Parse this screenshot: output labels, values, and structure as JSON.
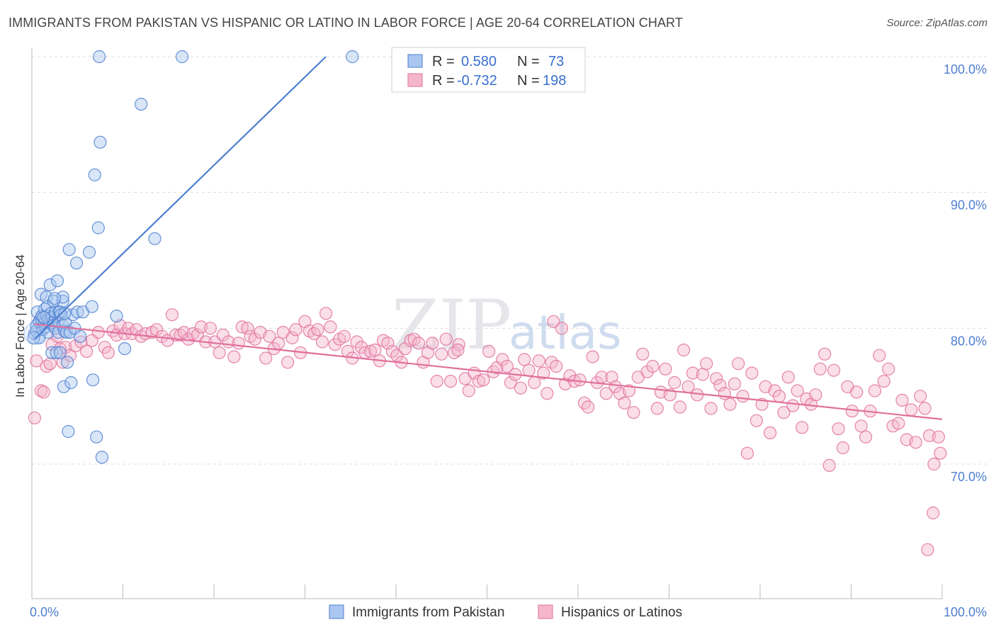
{
  "title": "IMMIGRANTS FROM PAKISTAN VS HISPANIC OR LATINO IN LABOR FORCE | AGE 20-64 CORRELATION CHART",
  "source": "Source: ZipAtlas.com",
  "watermark": {
    "part1": "ZIP",
    "part2": "atlas"
  },
  "colors": {
    "blue": "#4f7fd0",
    "blue_fill": "#a9c7f0",
    "pink": "#e0709a",
    "pink_fill": "#f5b6cc",
    "grid": "#dddddd"
  },
  "legend": {
    "rows": [
      {
        "r_label": "R =",
        "r_value": "0.580",
        "n_label": "N =",
        "n_value": "73"
      },
      {
        "r_label": "R =",
        "r_value": "-0.732",
        "n_label": "N =",
        "n_value": "198"
      }
    ]
  },
  "chart_data": {
    "type": "scatter",
    "ylabel": "In Labor Force | Age 20-64",
    "xlim": [
      0,
      100
    ],
    "ylim": [
      62.0,
      101.0
    ],
    "y_ticks": [
      70,
      80,
      90,
      100
    ],
    "y_tick_labels": [
      "70.0%",
      "80.0%",
      "90.0%",
      "100.0%"
    ],
    "x_tick_labels": [
      "0.0%",
      "100.0%"
    ],
    "grid": true,
    "legend_position": "bottom",
    "series": [
      {
        "name": "Immigrants from Pakistan",
        "color": "#4f7fd0",
        "trend": {
          "x": [
            0.3,
            32.3
          ],
          "y": [
            79.2,
            100.0
          ]
        },
        "points": [
          [
            0.3,
            79.6
          ],
          [
            0.5,
            80.2
          ],
          [
            0.5,
            79.8
          ],
          [
            0.8,
            80.5
          ],
          [
            0.8,
            79.3
          ],
          [
            0.6,
            81.2
          ],
          [
            1.0,
            82.5
          ],
          [
            1.0,
            80.7
          ],
          [
            1.1,
            80.9
          ],
          [
            1.2,
            79.9
          ],
          [
            1.4,
            80.4
          ],
          [
            1.4,
            81.4
          ],
          [
            1.5,
            80.1
          ],
          [
            1.6,
            80.9
          ],
          [
            1.6,
            82.3
          ],
          [
            1.7,
            81.6
          ],
          [
            1.8,
            80.6
          ],
          [
            1.8,
            79.7
          ],
          [
            2.0,
            83.2
          ],
          [
            2.0,
            80.4
          ],
          [
            2.1,
            81.1
          ],
          [
            2.2,
            80.8
          ],
          [
            2.2,
            78.2
          ],
          [
            2.3,
            80.4
          ],
          [
            2.4,
            80.2
          ],
          [
            2.4,
            82.0
          ],
          [
            2.6,
            81.2
          ],
          [
            2.6,
            80.0
          ],
          [
            2.7,
            78.2
          ],
          [
            2.8,
            83.5
          ],
          [
            2.9,
            80.5
          ],
          [
            2.9,
            79.7
          ],
          [
            3.0,
            81.2
          ],
          [
            3.1,
            81.2
          ],
          [
            3.1,
            78.2
          ],
          [
            3.2,
            81.0
          ],
          [
            3.4,
            82.0
          ],
          [
            3.4,
            82.3
          ],
          [
            3.4,
            80.2
          ],
          [
            3.5,
            75.7
          ],
          [
            3.6,
            79.8
          ],
          [
            3.7,
            80.4
          ],
          [
            3.8,
            79.7
          ],
          [
            3.9,
            77.5
          ],
          [
            4.0,
            72.4
          ],
          [
            4.1,
            85.8
          ],
          [
            4.2,
            79.7
          ],
          [
            4.3,
            76.0
          ],
          [
            4.5,
            81.0
          ],
          [
            4.7,
            80.0
          ],
          [
            4.9,
            84.8
          ],
          [
            5.0,
            81.2
          ],
          [
            5.3,
            79.4
          ],
          [
            5.6,
            81.2
          ],
          [
            6.3,
            85.6
          ],
          [
            6.6,
            81.6
          ],
          [
            6.7,
            76.2
          ],
          [
            6.9,
            91.3
          ],
          [
            7.1,
            72.0
          ],
          [
            7.3,
            87.4
          ],
          [
            7.4,
            100.0
          ],
          [
            7.5,
            93.7
          ],
          [
            7.7,
            70.5
          ],
          [
            9.3,
            80.9
          ],
          [
            10.2,
            78.5
          ],
          [
            12.0,
            96.5
          ],
          [
            13.5,
            86.6
          ],
          [
            16.5,
            100.0
          ],
          [
            35.2,
            100.0
          ],
          [
            0.2,
            79.3
          ],
          [
            1.3,
            80.8
          ],
          [
            2.5,
            82.2
          ],
          [
            3.6,
            81.1
          ]
        ]
      },
      {
        "name": "Hispanics or Latinos",
        "color": "#e0709a",
        "trend": {
          "x": [
            0.3,
            100.0
          ],
          "y": [
            80.3,
            73.3
          ]
        },
        "points": [
          [
            0.3,
            73.4
          ],
          [
            1.0,
            75.4
          ],
          [
            1.3,
            75.3
          ],
          [
            1.6,
            77.2
          ],
          [
            2.0,
            77.4
          ],
          [
            2.2,
            78.8
          ],
          [
            2.8,
            79.4
          ],
          [
            3.1,
            78.5
          ],
          [
            3.4,
            77.5
          ],
          [
            3.7,
            78.6
          ],
          [
            4.2,
            78.0
          ],
          [
            4.8,
            78.7
          ],
          [
            5.4,
            79.0
          ],
          [
            6.0,
            78.3
          ],
          [
            6.6,
            79.1
          ],
          [
            7.3,
            79.7
          ],
          [
            8.0,
            78.6
          ],
          [
            8.4,
            78.2
          ],
          [
            8.9,
            79.8
          ],
          [
            9.3,
            79.5
          ],
          [
            9.7,
            80.2
          ],
          [
            10.2,
            79.6
          ],
          [
            10.6,
            80.0
          ],
          [
            11.0,
            79.6
          ],
          [
            11.5,
            79.9
          ],
          [
            12.0,
            79.4
          ],
          [
            12.5,
            79.6
          ],
          [
            13.2,
            79.7
          ],
          [
            13.7,
            79.9
          ],
          [
            14.3,
            79.4
          ],
          [
            14.9,
            79.1
          ],
          [
            15.4,
            81.0
          ],
          [
            15.8,
            79.5
          ],
          [
            16.3,
            79.5
          ],
          [
            16.7,
            79.7
          ],
          [
            17.2,
            79.2
          ],
          [
            17.7,
            79.6
          ],
          [
            18.2,
            79.5
          ],
          [
            18.6,
            80.1
          ],
          [
            19.1,
            79.0
          ],
          [
            19.6,
            80.0
          ],
          [
            20.1,
            79.0
          ],
          [
            20.6,
            78.2
          ],
          [
            21.0,
            79.5
          ],
          [
            21.6,
            79.0
          ],
          [
            22.2,
            77.9
          ],
          [
            22.7,
            78.9
          ],
          [
            23.1,
            80.1
          ],
          [
            23.7,
            80.0
          ],
          [
            24.0,
            79.4
          ],
          [
            24.5,
            79.2
          ],
          [
            25.1,
            79.7
          ],
          [
            25.7,
            77.8
          ],
          [
            26.1,
            79.4
          ],
          [
            26.6,
            78.5
          ],
          [
            27.1,
            78.9
          ],
          [
            27.6,
            79.7
          ],
          [
            28.1,
            77.5
          ],
          [
            28.6,
            79.3
          ],
          [
            29.0,
            79.9
          ],
          [
            29.5,
            78.2
          ],
          [
            30.0,
            80.5
          ],
          [
            30.5,
            79.8
          ],
          [
            31.0,
            79.6
          ],
          [
            31.4,
            79.9
          ],
          [
            31.9,
            79.0
          ],
          [
            32.3,
            81.1
          ],
          [
            32.8,
            80.1
          ],
          [
            33.3,
            78.8
          ],
          [
            33.8,
            79.2
          ],
          [
            34.3,
            79.4
          ],
          [
            34.7,
            78.3
          ],
          [
            35.2,
            77.8
          ],
          [
            35.7,
            79.0
          ],
          [
            36.2,
            78.6
          ],
          [
            36.6,
            78.2
          ],
          [
            37.2,
            78.3
          ],
          [
            37.7,
            78.4
          ],
          [
            38.2,
            77.6
          ],
          [
            38.6,
            79.1
          ],
          [
            39.1,
            78.9
          ],
          [
            39.6,
            78.3
          ],
          [
            40.1,
            78.0
          ],
          [
            40.6,
            77.5
          ],
          [
            41.0,
            78.5
          ],
          [
            41.6,
            79.1
          ],
          [
            42.0,
            79.2
          ],
          [
            42.5,
            78.9
          ],
          [
            43.0,
            77.5
          ],
          [
            43.5,
            78.2
          ],
          [
            44.0,
            78.9
          ],
          [
            44.5,
            76.1
          ],
          [
            45.0,
            78.1
          ],
          [
            45.5,
            79.2
          ],
          [
            46.0,
            76.1
          ],
          [
            46.4,
            78.2
          ],
          [
            46.9,
            78.8
          ],
          [
            47.6,
            76.3
          ],
          [
            48.0,
            75.4
          ],
          [
            48.6,
            76.7
          ],
          [
            49.1,
            76.1
          ],
          [
            49.6,
            76.2
          ],
          [
            50.2,
            78.3
          ],
          [
            50.7,
            76.8
          ],
          [
            51.1,
            77.1
          ],
          [
            51.7,
            77.7
          ],
          [
            52.2,
            77.2
          ],
          [
            52.6,
            76.0
          ],
          [
            53.1,
            76.6
          ],
          [
            53.7,
            75.6
          ],
          [
            54.1,
            77.7
          ],
          [
            54.6,
            76.9
          ],
          [
            55.2,
            76.0
          ],
          [
            55.7,
            77.6
          ],
          [
            56.2,
            76.7
          ],
          [
            56.6,
            75.2
          ],
          [
            57.1,
            77.5
          ],
          [
            57.6,
            77.2
          ],
          [
            58.2,
            80.0
          ],
          [
            58.6,
            75.9
          ],
          [
            59.1,
            76.5
          ],
          [
            59.6,
            76.1
          ],
          [
            60.2,
            76.2
          ],
          [
            60.7,
            74.5
          ],
          [
            61.1,
            74.2
          ],
          [
            61.6,
            77.9
          ],
          [
            62.1,
            76.0
          ],
          [
            62.6,
            76.4
          ],
          [
            63.1,
            75.2
          ],
          [
            63.7,
            76.4
          ],
          [
            64.1,
            75.7
          ],
          [
            64.6,
            75.2
          ],
          [
            65.1,
            74.5
          ],
          [
            65.6,
            75.4
          ],
          [
            66.1,
            73.8
          ],
          [
            66.6,
            76.4
          ],
          [
            67.1,
            78.1
          ],
          [
            67.6,
            76.8
          ],
          [
            68.2,
            77.2
          ],
          [
            68.7,
            74.1
          ],
          [
            69.1,
            75.3
          ],
          [
            69.6,
            77.0
          ],
          [
            70.1,
            75.1
          ],
          [
            70.6,
            76.0
          ],
          [
            71.2,
            74.2
          ],
          [
            71.6,
            78.4
          ],
          [
            72.1,
            75.7
          ],
          [
            72.6,
            76.7
          ],
          [
            73.1,
            75.1
          ],
          [
            73.7,
            76.6
          ],
          [
            74.1,
            77.4
          ],
          [
            74.6,
            74.1
          ],
          [
            75.2,
            76.3
          ],
          [
            75.6,
            75.8
          ],
          [
            76.1,
            75.2
          ],
          [
            76.7,
            74.4
          ],
          [
            77.2,
            75.9
          ],
          [
            77.6,
            77.4
          ],
          [
            78.1,
            75.0
          ],
          [
            78.6,
            70.8
          ],
          [
            79.1,
            76.7
          ],
          [
            79.6,
            73.2
          ],
          [
            80.2,
            74.4
          ],
          [
            80.6,
            75.7
          ],
          [
            81.1,
            72.3
          ],
          [
            81.6,
            75.4
          ],
          [
            82.1,
            75.0
          ],
          [
            82.6,
            73.8
          ],
          [
            83.1,
            76.4
          ],
          [
            83.6,
            74.3
          ],
          [
            84.1,
            75.4
          ],
          [
            84.6,
            72.7
          ],
          [
            85.1,
            74.8
          ],
          [
            85.6,
            74.4
          ],
          [
            86.1,
            75.1
          ],
          [
            86.6,
            77.0
          ],
          [
            87.1,
            78.1
          ],
          [
            87.6,
            69.9
          ],
          [
            88.1,
            76.9
          ],
          [
            88.6,
            72.6
          ],
          [
            89.1,
            71.2
          ],
          [
            89.6,
            75.7
          ],
          [
            90.1,
            73.9
          ],
          [
            90.6,
            75.3
          ],
          [
            91.1,
            72.8
          ],
          [
            91.6,
            72.0
          ],
          [
            92.1,
            73.9
          ],
          [
            92.6,
            75.4
          ],
          [
            93.1,
            78.0
          ],
          [
            93.6,
            76.1
          ],
          [
            94.1,
            77.0
          ],
          [
            94.6,
            72.8
          ],
          [
            95.2,
            73.0
          ],
          [
            95.6,
            74.7
          ],
          [
            96.1,
            71.8
          ],
          [
            96.6,
            74.0
          ],
          [
            97.1,
            71.6
          ],
          [
            97.6,
            75.0
          ],
          [
            98.1,
            74.1
          ],
          [
            98.6,
            72.1
          ],
          [
            99.1,
            70.0
          ],
          [
            99.6,
            72.0
          ],
          [
            99.8,
            70.8
          ],
          [
            99.0,
            66.4
          ],
          [
            98.4,
            63.7
          ],
          [
            0.5,
            77.6
          ],
          [
            46.8,
            78.4
          ],
          [
            57.3,
            80.5
          ]
        ]
      }
    ]
  }
}
